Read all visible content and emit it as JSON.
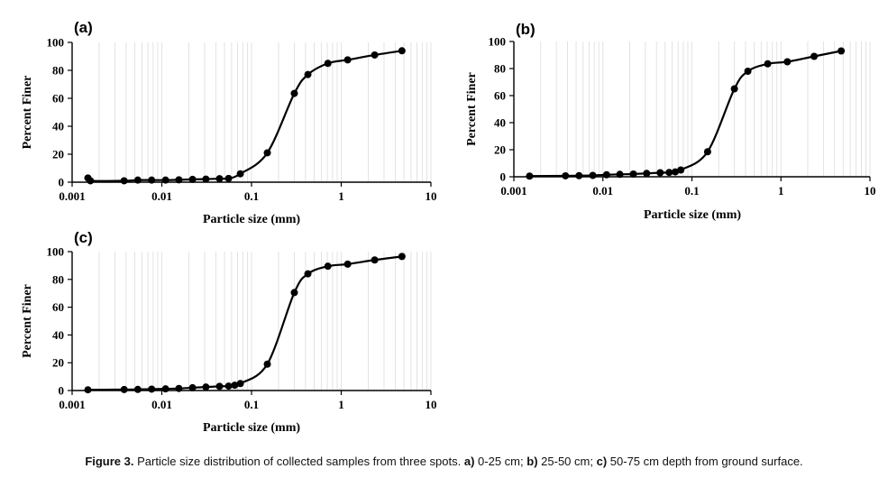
{
  "caption": {
    "figure_label": "Figure 3.",
    "text": "Particle size distribution of collected samples from three spots.",
    "part_a_label": "a)",
    "part_a_text": "0-25 cm;",
    "part_b_label": "b)",
    "part_b_text": "25-50 cm;",
    "part_c_label": "c)",
    "part_c_text": "50-75 cm depth from ground surface."
  },
  "chart_data": [
    {
      "type": "line",
      "panel_label": "(a)",
      "title": "",
      "xlabel": "Particle size (mm)",
      "ylabel": "Percent Finer",
      "xscale": "log",
      "xlim": [
        0.001,
        10
      ],
      "ylim": [
        0,
        100
      ],
      "xticks": [
        "0.001",
        "0.01",
        "0.1",
        "1",
        "10"
      ],
      "yticks": [
        "0",
        "20",
        "40",
        "60",
        "80",
        "100"
      ],
      "grid": "vertical minor log gridlines",
      "legend": "none",
      "x": [
        0.0015,
        0.0016,
        0.0038,
        0.0054,
        0.0077,
        0.011,
        0.0155,
        0.022,
        0.031,
        0.044,
        0.0555,
        0.075,
        0.15,
        0.3,
        0.425,
        0.71,
        1.18,
        2.36,
        4.75
      ],
      "y": [
        3,
        1,
        1,
        1.5,
        1.5,
        1.5,
        1.7,
        2,
        2.2,
        2.5,
        2.7,
        6,
        21,
        63.5,
        77,
        85,
        87.5,
        91,
        94
      ]
    },
    {
      "type": "line",
      "panel_label": "(b)",
      "title": "",
      "xlabel": "Particle size (mm)",
      "ylabel": "Percent Finer",
      "xscale": "log",
      "xlim": [
        0.001,
        10
      ],
      "ylim": [
        0,
        100
      ],
      "xticks": [
        "0.001",
        "0.01",
        "0.1",
        "1",
        "10"
      ],
      "yticks": [
        "0",
        "20",
        "40",
        "60",
        "80",
        "100"
      ],
      "grid": "vertical minor log gridlines",
      "legend": "none",
      "x": [
        0.0015,
        0.0038,
        0.0054,
        0.0077,
        0.011,
        0.0155,
        0.022,
        0.031,
        0.044,
        0.0555,
        0.065,
        0.075,
        0.15,
        0.3,
        0.425,
        0.71,
        1.18,
        2.36,
        4.75
      ],
      "y": [
        0.5,
        0.7,
        0.8,
        1,
        1.5,
        1.8,
        2,
        2.5,
        3,
        3.2,
        3.6,
        5,
        18.5,
        65,
        78,
        83.5,
        85,
        89,
        93
      ]
    },
    {
      "type": "line",
      "panel_label": "(c)",
      "title": "",
      "xlabel": "Particle size (mm)",
      "ylabel": "Percent Finer",
      "xscale": "log",
      "xlim": [
        0.001,
        10
      ],
      "ylim": [
        0,
        100
      ],
      "xticks": [
        "0.001",
        "0.01",
        "0.1",
        "1",
        "10"
      ],
      "yticks": [
        "0",
        "20",
        "40",
        "60",
        "80",
        "100"
      ],
      "grid": "vertical minor log gridlines",
      "legend": "none",
      "x": [
        0.0015,
        0.0038,
        0.0054,
        0.0077,
        0.011,
        0.0155,
        0.022,
        0.031,
        0.044,
        0.0555,
        0.065,
        0.075,
        0.15,
        0.3,
        0.425,
        0.71,
        1.18,
        2.36,
        4.75
      ],
      "y": [
        0.5,
        0.7,
        0.8,
        1,
        1.2,
        1.5,
        2,
        2.5,
        3,
        3.2,
        3.8,
        5,
        19,
        70.5,
        84,
        89.5,
        91,
        94,
        96.5
      ]
    }
  ]
}
